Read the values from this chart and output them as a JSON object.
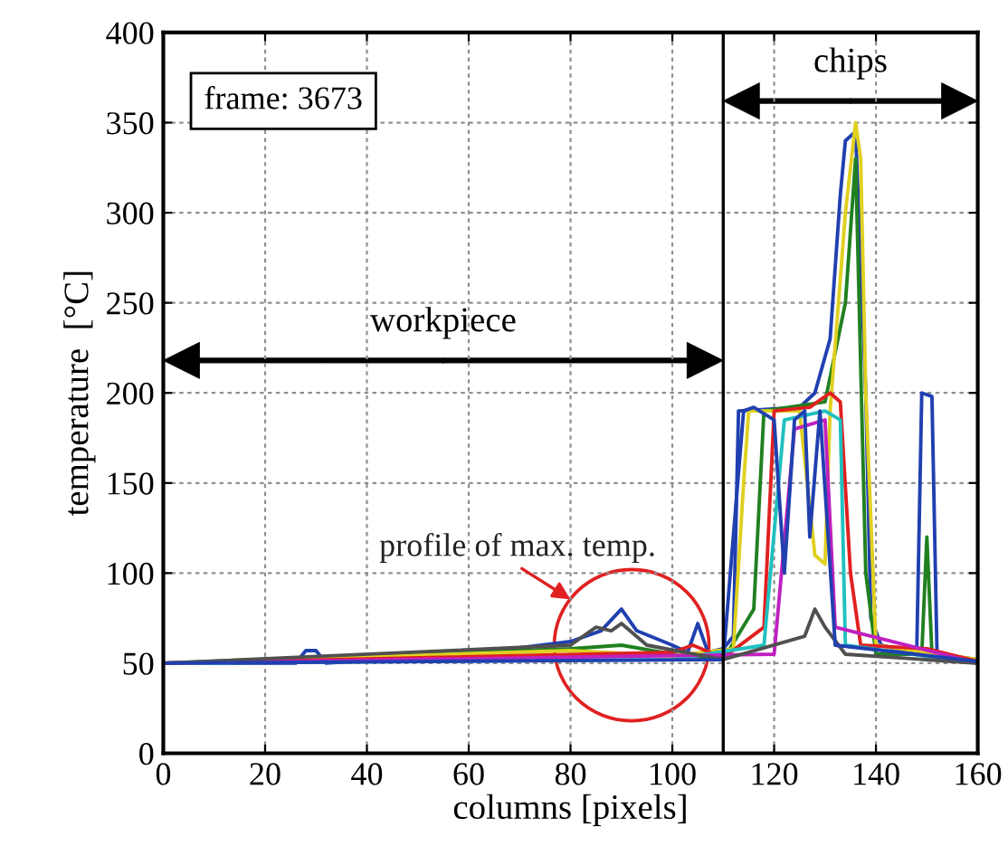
{
  "chart_data": {
    "type": "line",
    "xlabel": "columns [pixels]",
    "ylabel": "temperature  [°C]",
    "xlim": [
      0,
      160
    ],
    "xticks": [
      0,
      20,
      40,
      60,
      80,
      100,
      120,
      140,
      160
    ],
    "ylim": [
      0,
      400
    ],
    "yticks": [
      0,
      50,
      100,
      150,
      200,
      250,
      300,
      350,
      400
    ],
    "grid": true,
    "line_style": "solid",
    "marker": "none",
    "annotations": [
      "frame: 3673",
      "workpiece",
      "chips",
      "profile of max. temp."
    ],
    "ref_lines": [
      {
        "axis": "x",
        "value": 110,
        "color": "#000000",
        "line_style": "solid"
      }
    ],
    "series": [
      {
        "color": "#2040b0",
        "x": [
          0,
          26,
          28,
          30,
          32,
          60,
          80,
          86,
          90,
          93,
          100,
          103,
          105,
          107,
          110,
          112,
          113,
          125,
          128,
          131,
          133,
          134,
          136,
          138,
          139,
          141,
          148,
          149,
          151,
          152,
          160
        ],
        "values": [
          50,
          50,
          57,
          57,
          50,
          55,
          62,
          68,
          80,
          68,
          60,
          56,
          72,
          56,
          58,
          65,
          190,
          192,
          200,
          230,
          310,
          340,
          345,
          200,
          75,
          60,
          55,
          200,
          198,
          55,
          52
        ]
      },
      {
        "color": "#208020",
        "x": [
          0,
          80,
          90,
          100,
          110,
          116,
          118,
          130,
          134,
          136,
          138,
          140,
          149,
          150,
          151,
          160
        ],
        "values": [
          50,
          58,
          60,
          55,
          52,
          80,
          190,
          195,
          250,
          330,
          100,
          55,
          55,
          120,
          55,
          51
        ]
      },
      {
        "color": "#e0d020",
        "x": [
          0,
          80,
          100,
          112,
          114,
          115,
          125,
          128,
          130,
          131,
          134,
          136,
          137,
          138,
          140,
          160
        ],
        "values": [
          50,
          57,
          54,
          58,
          150,
          190,
          190,
          110,
          105,
          190,
          300,
          350,
          330,
          200,
          60,
          52
        ]
      },
      {
        "color": "#e02020",
        "x": [
          0,
          100,
          104,
          110,
          118,
          120,
          127,
          131,
          133,
          135,
          137,
          150,
          160
        ],
        "values": [
          50,
          56,
          60,
          53,
          70,
          190,
          192,
          200,
          195,
          100,
          60,
          58,
          51
        ]
      },
      {
        "color": "#20c0c0",
        "x": [
          0,
          100,
          118,
          122,
          130,
          133,
          134,
          160
        ],
        "values": [
          50,
          52,
          60,
          185,
          190,
          185,
          60,
          50
        ]
      },
      {
        "color": "#c020c0",
        "x": [
          0,
          120,
          124,
          130,
          132,
          160
        ],
        "values": [
          50,
          55,
          180,
          185,
          70,
          50
        ]
      },
      {
        "color": "#505050",
        "x": [
          0,
          80,
          85,
          88,
          90,
          95,
          110,
          126,
          128,
          130,
          134,
          160
        ],
        "values": [
          50,
          60,
          70,
          68,
          72,
          60,
          52,
          65,
          80,
          70,
          55,
          50
        ]
      },
      {
        "color": "#2040b0",
        "x": [
          0,
          110,
          114,
          116,
          120,
          122,
          124,
          126,
          127,
          129,
          132,
          160
        ],
        "values": [
          50,
          52,
          190,
          192,
          185,
          100,
          185,
          190,
          120,
          190,
          60,
          51
        ]
      }
    ]
  }
}
